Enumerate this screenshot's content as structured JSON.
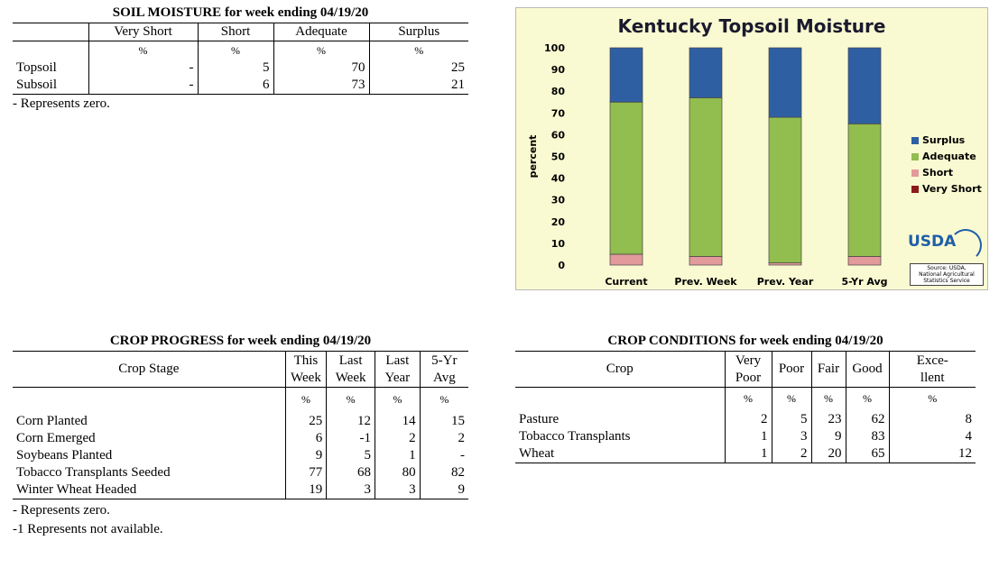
{
  "soil": {
    "title": "SOIL MOISTURE for week ending 04/19/20",
    "headers": [
      "Very Short",
      "Short",
      "Adequate",
      "Surplus"
    ],
    "units": [
      "%",
      "%",
      "%",
      "%"
    ],
    "rows": [
      {
        "label": "Topsoil",
        "values": [
          "-",
          "5",
          "70",
          "25"
        ]
      },
      {
        "label": "Subsoil",
        "values": [
          "-",
          "6",
          "73",
          "21"
        ]
      }
    ],
    "note": "- Represents zero."
  },
  "progress": {
    "title": "CROP PROGRESS for week ending 04/19/20",
    "header_stage": "Crop Stage",
    "headers": [
      [
        "This",
        "Week"
      ],
      [
        "Last",
        "Week"
      ],
      [
        "Last",
        "Year"
      ],
      [
        "5-Yr",
        "Avg"
      ]
    ],
    "units": [
      "%",
      "%",
      "%",
      "%"
    ],
    "rows": [
      {
        "label": "Corn Planted",
        "values": [
          "25",
          "12",
          "14",
          "15"
        ]
      },
      {
        "label": "Corn Emerged",
        "values": [
          "6",
          "-1",
          "2",
          "2"
        ]
      },
      {
        "label": "Soybeans Planted",
        "values": [
          "9",
          "5",
          "1",
          "-"
        ]
      },
      {
        "label": "Tobacco Transplants Seeded",
        "values": [
          "77",
          "68",
          "80",
          "82"
        ]
      },
      {
        "label": "Winter Wheat Headed",
        "values": [
          "19",
          "3",
          "3",
          "9"
        ]
      }
    ],
    "note1": "- Represents zero.",
    "note2": "-1 Represents not available."
  },
  "conditions": {
    "title": "CROP CONDITIONS for week ending 04/19/20",
    "header_crop": "Crop",
    "headers": [
      [
        "Very",
        "Poor"
      ],
      [
        "Poor"
      ],
      [
        "Fair"
      ],
      [
        "Good"
      ],
      [
        "Exce-",
        "llent"
      ]
    ],
    "units": [
      "%",
      "%",
      "%",
      "%",
      "%"
    ],
    "rows": [
      {
        "label": "Pasture",
        "values": [
          "2",
          "5",
          "23",
          "62",
          "8"
        ]
      },
      {
        "label": "Tobacco Transplants",
        "values": [
          "1",
          "3",
          "9",
          "83",
          "4"
        ]
      },
      {
        "label": "Wheat",
        "values": [
          "1",
          "2",
          "20",
          "65",
          "12"
        ]
      }
    ]
  },
  "chart_data": {
    "type": "bar",
    "stacked": true,
    "title": "Kentucky Topsoil Moisture",
    "ylabel": "percent",
    "xlabel": "",
    "ylim": [
      0,
      100
    ],
    "yticks": [
      0,
      10,
      20,
      30,
      40,
      50,
      60,
      70,
      80,
      90,
      100
    ],
    "categories": [
      "Current",
      "Prev. Week",
      "Prev. Year",
      "5-Yr Avg"
    ],
    "series": [
      {
        "name": "Very Short",
        "color": "#8b1a1a",
        "values": [
          0,
          0,
          0,
          0
        ]
      },
      {
        "name": "Short",
        "color": "#e39a9a",
        "values": [
          5,
          4,
          1,
          4
        ]
      },
      {
        "name": "Adequate",
        "color": "#92bd4f",
        "values": [
          70,
          73,
          67,
          61
        ]
      },
      {
        "name": "Surplus",
        "color": "#2f5fa3",
        "values": [
          25,
          23,
          32,
          35
        ]
      }
    ],
    "legend": "right",
    "legend_order": [
      "Surplus",
      "Adequate",
      "Short",
      "Very Short"
    ]
  },
  "usda": {
    "logo": "USDA",
    "source": [
      "Source: USDA,",
      "National Agricultural",
      "Statistics Service"
    ]
  }
}
